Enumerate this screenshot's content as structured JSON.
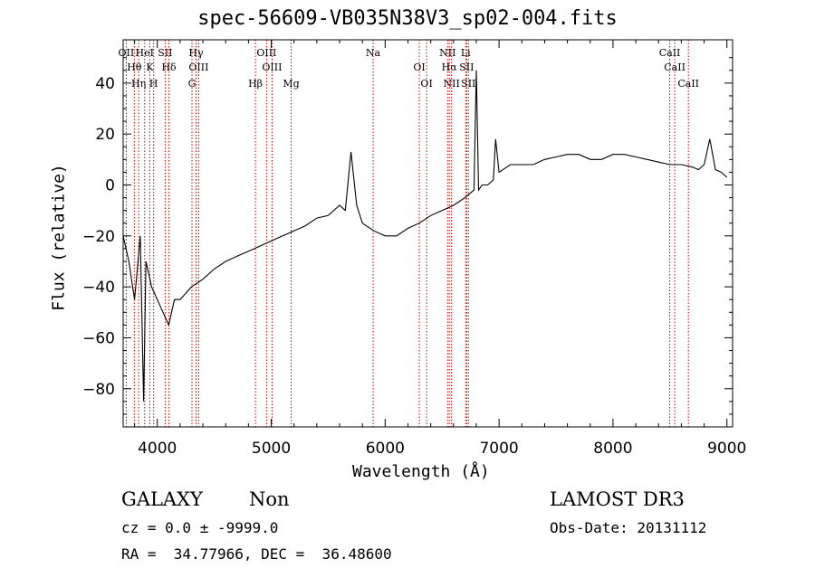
{
  "chart_data": {
    "type": "line",
    "title": "spec-56609-VB035N38V3_sp02-004.fits",
    "xlabel": "Wavelength (Å)",
    "ylabel": "Flux (relative)",
    "xlim": [
      3700,
      9050
    ],
    "ylim": [
      -95,
      57
    ],
    "xticks": [
      4000,
      5000,
      6000,
      7000,
      8000,
      9000
    ],
    "yticks": [
      40,
      20,
      0,
      -20,
      -40,
      -60,
      -80
    ],
    "grid": false,
    "line_color": "#000000",
    "marker_color": "#cc0000",
    "series": [
      {
        "x": [
          3700,
          3750,
          3800,
          3850,
          3880,
          3900,
          3950,
          4000,
          4050,
          4100,
          4150,
          4200,
          4300,
          4400,
          4500,
          4600,
          4700,
          4800,
          4900,
          5000,
          5100,
          5200,
          5300,
          5400,
          5500,
          5600,
          5650,
          5700,
          5750,
          5800,
          5900,
          6000,
          6100,
          6200,
          6300,
          6400,
          6500,
          6600,
          6700,
          6780,
          6800,
          6820,
          6850,
          6900,
          6950,
          6970,
          7000,
          7100,
          7200,
          7300,
          7400,
          7500,
          7600,
          7700,
          7800,
          7900,
          8000,
          8100,
          8200,
          8300,
          8400,
          8500,
          8600,
          8700,
          8750,
          8800,
          8850,
          8900,
          8950,
          9000
        ],
        "y": [
          -20,
          -30,
          -45,
          -20,
          -85,
          -30,
          -40,
          -45,
          -50,
          -55,
          -45,
          -45,
          -40,
          -37,
          -33,
          -30,
          -28,
          -26,
          -24,
          -22,
          -20,
          -18,
          -16,
          -13,
          -12,
          -8,
          -10,
          13,
          -8,
          -15,
          -18,
          -20,
          -20,
          -17,
          -15,
          -12,
          -10,
          -8,
          -5,
          -2,
          45,
          -2,
          0,
          0,
          2,
          18,
          5,
          8,
          8,
          8,
          10,
          11,
          12,
          12,
          10,
          10,
          12,
          12,
          11,
          10,
          9,
          8,
          8,
          7,
          6,
          8,
          18,
          6,
          5,
          3
        ]
      }
    ],
    "lines": [
      {
        "name": "OII",
        "x": 3727
      },
      {
        "name": "Hθ",
        "x": 3798
      },
      {
        "name": "Hη",
        "x": 3836
      },
      {
        "name": "HeI",
        "x": 3889
      },
      {
        "name": "K",
        "x": 3934
      },
      {
        "name": "H",
        "x": 3968
      },
      {
        "name": "SII",
        "x": 4069
      },
      {
        "name": "Hδ",
        "x": 4102
      },
      {
        "name": "G",
        "x": 4304
      },
      {
        "name": "Hγ",
        "x": 4340
      },
      {
        "name": "OIII",
        "x": 4363
      },
      {
        "name": "Hβ",
        "x": 4861
      },
      {
        "name": "OIII",
        "x": 4959
      },
      {
        "name": "OIII",
        "x": 5007
      },
      {
        "name": "Mg",
        "x": 5175
      },
      {
        "name": "Na",
        "x": 5894
      },
      {
        "name": "OI",
        "x": 6300
      },
      {
        "name": "OI",
        "x": 6364
      },
      {
        "name": "NII",
        "x": 6548
      },
      {
        "name": "Hα",
        "x": 6563
      },
      {
        "name": "NII",
        "x": 6583
      },
      {
        "name": "Li",
        "x": 6707
      },
      {
        "name": "SII",
        "x": 6716
      },
      {
        "name": "SII",
        "x": 6731
      },
      {
        "name": "CaII",
        "x": 8498
      },
      {
        "name": "CaII",
        "x": 8542
      },
      {
        "name": "CaII",
        "x": 8662
      }
    ]
  },
  "info": {
    "class_label": "GALAXY",
    "subclass_label": "Non",
    "cz_line": "cz = 0.0 ± -9999.0",
    "radec_line": "RA =  34.77966, DEC =  36.48600",
    "survey_label": "LAMOST DR3",
    "obs_date_line": "Obs-Date: 20131112"
  }
}
